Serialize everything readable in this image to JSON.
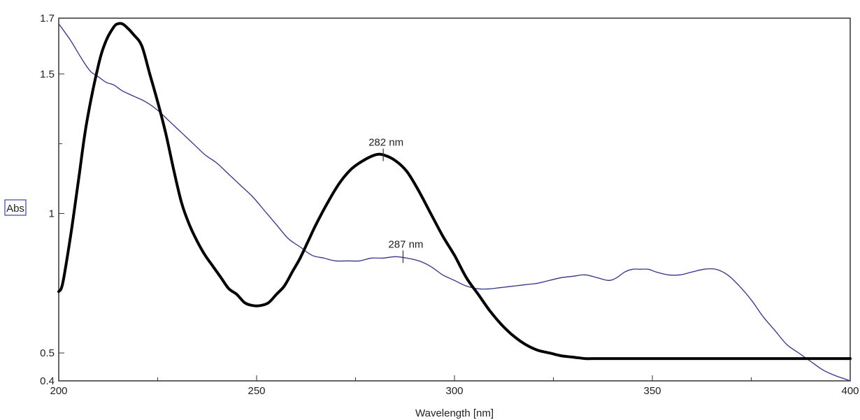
{
  "chart_data": {
    "type": "line",
    "title": "",
    "xlabel": "Wavelength [nm]",
    "ylabel": "Abs",
    "xlim": [
      200,
      400
    ],
    "ylim": [
      0.4,
      1.7
    ],
    "grid": false,
    "legend": "none",
    "x_ticks": [
      200,
      250,
      300,
      350,
      400
    ],
    "x_minor_ticks": [
      225,
      275,
      325,
      375
    ],
    "y_ticks": [
      0.4,
      0.5,
      1,
      1.5,
      1.7
    ],
    "y_minor_ticks": [
      1.25
    ],
    "series": [
      {
        "color": "#000000",
        "style": "thick",
        "x": [
          200,
          201,
          203,
          205,
          207,
          210,
          212,
          214,
          215,
          216,
          217,
          219,
          221,
          223,
          225,
          227,
          229,
          231,
          233,
          235,
          237,
          239,
          241,
          243,
          245,
          247,
          249,
          251,
          253,
          255,
          257,
          259,
          261,
          263,
          265,
          268,
          271,
          274,
          277,
          280,
          282,
          285,
          288,
          291,
          294,
          297,
          300,
          303,
          306,
          309,
          312,
          315,
          318,
          321,
          324,
          327,
          330,
          333,
          336,
          340,
          345,
          350,
          360,
          370,
          380,
          390,
          400
        ],
        "y": [
          0.72,
          0.75,
          0.92,
          1.12,
          1.32,
          1.53,
          1.62,
          1.67,
          1.68,
          1.68,
          1.67,
          1.64,
          1.6,
          1.5,
          1.4,
          1.29,
          1.16,
          1.04,
          0.96,
          0.9,
          0.85,
          0.81,
          0.77,
          0.73,
          0.71,
          0.68,
          0.67,
          0.67,
          0.68,
          0.71,
          0.74,
          0.79,
          0.84,
          0.9,
          0.96,
          1.04,
          1.11,
          1.16,
          1.19,
          1.21,
          1.21,
          1.19,
          1.15,
          1.08,
          1.0,
          0.92,
          0.85,
          0.77,
          0.71,
          0.65,
          0.6,
          0.56,
          0.53,
          0.51,
          0.5,
          0.49,
          0.485,
          0.48,
          0.48,
          0.48,
          0.48,
          0.48,
          0.48,
          0.48,
          0.48,
          0.48,
          0.48
        ]
      },
      {
        "color": "#33338c",
        "style": "thin",
        "x": [
          200,
          203,
          206,
          208,
          210,
          212,
          214,
          216,
          219,
          222,
          225,
          228,
          231,
          234,
          237,
          240,
          243,
          246,
          249,
          252,
          255,
          258,
          261,
          264,
          267,
          270,
          273,
          276,
          279,
          282,
          285,
          288,
          291,
          294,
          297,
          300,
          303,
          306,
          309,
          312,
          315,
          318,
          321,
          324,
          327,
          330,
          333,
          336,
          339,
          341,
          343,
          345,
          347,
          349,
          351,
          354,
          357,
          360,
          363,
          366,
          369,
          372,
          375,
          378,
          381,
          384,
          387,
          390,
          393,
          396,
          398,
          400
        ],
        "y": [
          1.68,
          1.62,
          1.55,
          1.51,
          1.49,
          1.47,
          1.46,
          1.44,
          1.42,
          1.4,
          1.37,
          1.33,
          1.29,
          1.25,
          1.21,
          1.18,
          1.14,
          1.1,
          1.06,
          1.01,
          0.96,
          0.91,
          0.88,
          0.85,
          0.84,
          0.83,
          0.83,
          0.83,
          0.84,
          0.84,
          0.845,
          0.84,
          0.83,
          0.81,
          0.78,
          0.76,
          0.74,
          0.73,
          0.73,
          0.735,
          0.74,
          0.745,
          0.75,
          0.76,
          0.77,
          0.775,
          0.78,
          0.77,
          0.76,
          0.77,
          0.79,
          0.8,
          0.8,
          0.8,
          0.79,
          0.78,
          0.78,
          0.79,
          0.8,
          0.8,
          0.78,
          0.74,
          0.69,
          0.63,
          0.58,
          0.53,
          0.5,
          0.47,
          0.44,
          0.42,
          0.41,
          0.4
        ]
      }
    ],
    "annotations": [
      {
        "text": "282 nm",
        "x": 282,
        "y": 1.21
      },
      {
        "text": "287 nm",
        "x": 287,
        "y": 0.845
      }
    ]
  },
  "colors": {
    "frame": "#333333",
    "ylabel_box": "#3344aa"
  }
}
